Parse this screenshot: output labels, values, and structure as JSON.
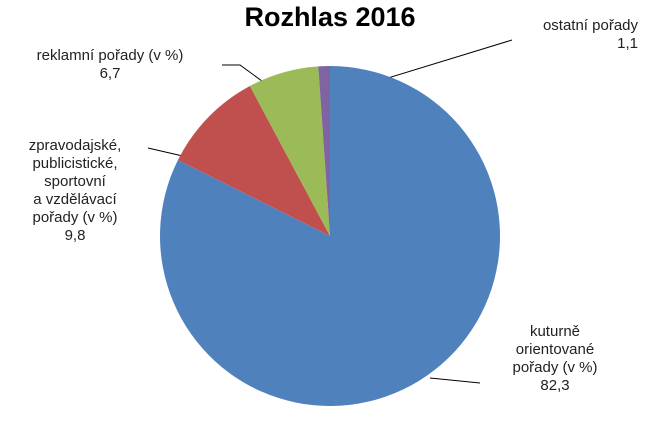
{
  "chart_data": {
    "type": "pie",
    "title": "Rozhlas 2016",
    "categories": [
      "kuturně\norientované\npořady (v %)",
      "zpravodajské,\npublicistické,\nsportovní\na vzdělávací\npořady (v %)",
      "reklamní pořady (v %)",
      "ostatní pořady"
    ],
    "values": [
      82.3,
      9.8,
      6.7,
      1.1
    ],
    "value_labels": [
      "82,3",
      "9,8",
      "6,7",
      "1,1"
    ],
    "colors": [
      "#4f81bd",
      "#c0504d",
      "#9bbb59",
      "#8064a2"
    ]
  }
}
